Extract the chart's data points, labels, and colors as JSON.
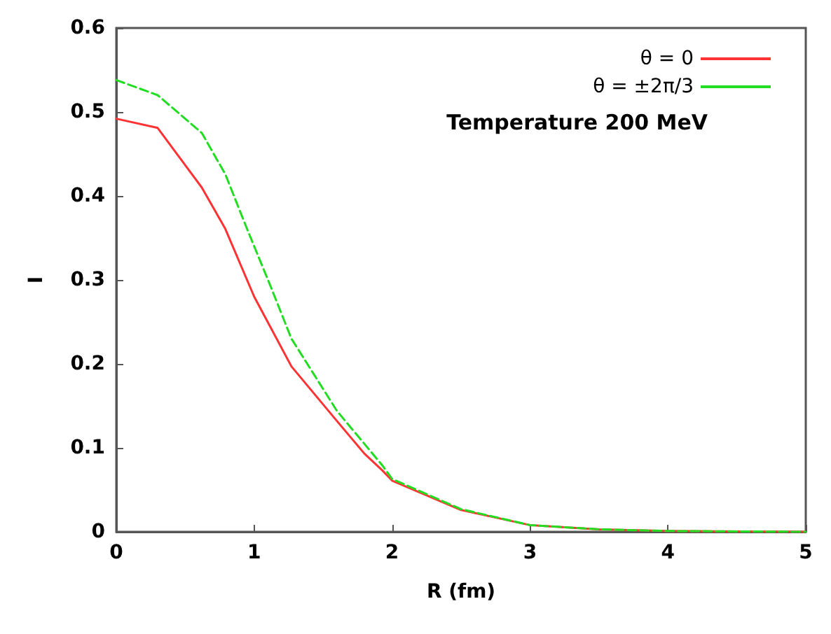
{
  "chart_data": {
    "type": "line",
    "xlabel": "R (fm)",
    "ylabel": "I",
    "annotations": [
      "Temperature 200 MeV"
    ],
    "xlim": [
      0,
      5
    ],
    "ylim": [
      0,
      0.6
    ],
    "xticks": [
      0,
      1,
      2,
      3,
      4,
      5
    ],
    "yticks": [
      0,
      0.1,
      0.2,
      0.3,
      0.4,
      0.5,
      0.6
    ],
    "grid": false,
    "legend": "top right",
    "marker": "none",
    "series": [
      {
        "name": "θ = 0",
        "color": "#ff3333",
        "line_style": "solid",
        "x": [
          0,
          0.3,
          0.62,
          0.79,
          1.0,
          1.27,
          1.6,
          1.8,
          1.93,
          2,
          2.5,
          3,
          3.5,
          4,
          5
        ],
        "values": [
          0.492,
          0.481,
          0.41,
          0.361,
          0.28,
          0.197,
          0.132,
          0.093,
          0.073,
          0.061,
          0.026,
          0.008,
          0.003,
          0.001,
          0
        ]
      },
      {
        "name": "θ = ±2π/3",
        "color": "#22dd22",
        "line_style": "dashed",
        "x": [
          0,
          0.3,
          0.62,
          0.79,
          0.95,
          1.11,
          1.27,
          1.6,
          1.93,
          2,
          2.5,
          3,
          3.5,
          4,
          5
        ],
        "values": [
          0.538,
          0.52,
          0.475,
          0.426,
          0.36,
          0.296,
          0.23,
          0.144,
          0.079,
          0.063,
          0.027,
          0.008,
          0.003,
          0.001,
          0
        ]
      }
    ]
  }
}
